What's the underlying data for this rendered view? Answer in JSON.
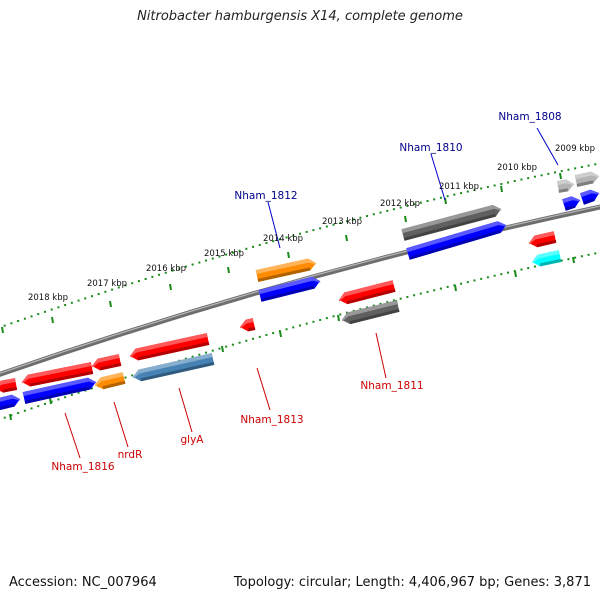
{
  "title": "Nitrobacter hamburgensis X14, complete genome",
  "footer": {
    "accession": "Accession: NC_007964",
    "summary": "Topology: circular; Length: 4,406,967 bp; Genes: 3,871"
  },
  "colors": {
    "backbone": "#808080",
    "tick": "#1a8a1a",
    "red": "#ff0000",
    "blue": "#0000ff",
    "orange": "#ff8c00",
    "gray": "#606060",
    "lightgray": "#b4b4b4",
    "steelblue": "#4682b4",
    "cyan": "#00ffff",
    "label_forward": "#00008b",
    "label_reverse": "#cc0000"
  },
  "kbp_labels": [
    "2009 kbp",
    "2010 kbp",
    "2011 kbp",
    "2012 kbp",
    "2013 kbp",
    "2014 kbp",
    "2015 kbp",
    "2016 kbp",
    "2017 kbp",
    "2018 kbp"
  ],
  "gene_labels": [
    {
      "text": "Nham_1808",
      "strand": "forward"
    },
    {
      "text": "Nham_1810",
      "strand": "forward"
    },
    {
      "text": "Nham_1812",
      "strand": "forward"
    },
    {
      "text": "Nham_1811",
      "strand": "reverse"
    },
    {
      "text": "Nham_1813",
      "strand": "reverse"
    },
    {
      "text": "glyA",
      "strand": "reverse"
    },
    {
      "text": "nrdR",
      "strand": "reverse"
    },
    {
      "text": "Nham_1816",
      "strand": "reverse"
    }
  ]
}
